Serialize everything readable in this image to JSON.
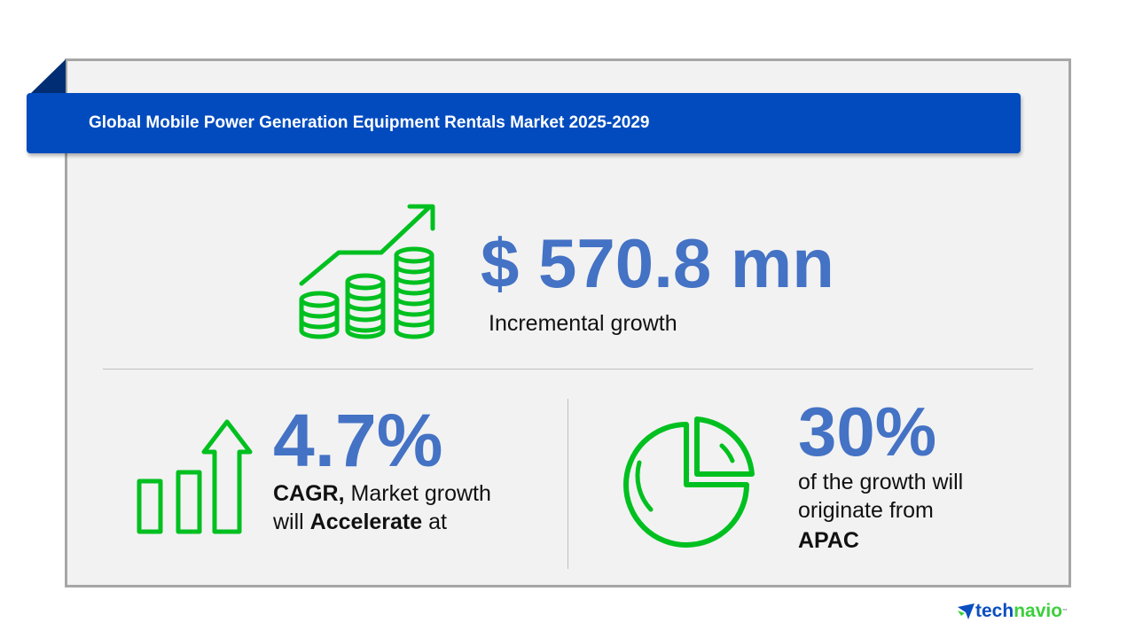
{
  "header": {
    "title": "Global Mobile Power Generation Equipment Rentals Market 2025-2029"
  },
  "incremental": {
    "value": "$ 570.8 mn",
    "label": "Incremental growth",
    "icon": "coins-growth-icon"
  },
  "cagr": {
    "value": "4.7%",
    "label_bold": "CAGR,",
    "label_rest": " Market growth",
    "line2_pre": "will ",
    "line2_bold": "Accelerate",
    "line2_post": " at",
    "icon": "bar-arrow-up-icon"
  },
  "region": {
    "value": "30%",
    "line1": "of the growth will",
    "line2": "originate from",
    "region": "APAC",
    "icon": "pie-chart-icon"
  },
  "brand": {
    "part1": "tech",
    "part2": "navio",
    "tm": "™"
  },
  "colors": {
    "banner": "#014bbf",
    "accent": "#4472c4",
    "icon_green": "#00c020"
  }
}
